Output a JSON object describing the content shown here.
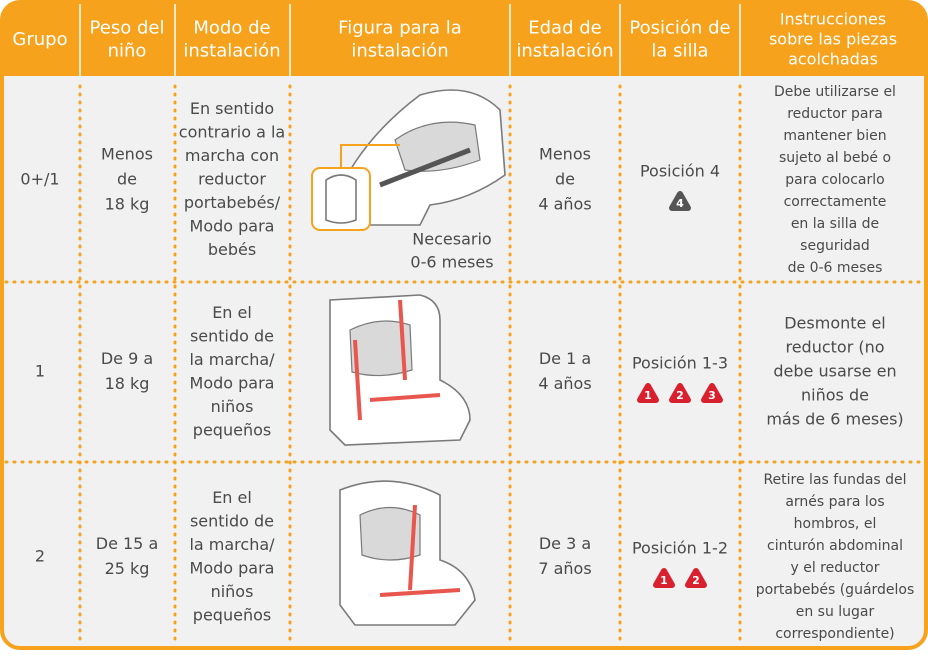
{
  "table": {
    "header": [
      [
        "Grupo"
      ],
      [
        "Peso del",
        "niño"
      ],
      [
        "Modo de",
        "instalación"
      ],
      [
        "Figura para la",
        "instalación"
      ],
      [
        "Edad de",
        "instalación"
      ],
      [
        "Posición de",
        "la silla"
      ],
      [
        "Instrucciones",
        "sobre las piezas",
        "acolchadas"
      ]
    ],
    "rows": [
      {
        "group": [
          "0+/1"
        ],
        "weight": [
          "Menos",
          "de",
          "18 kg"
        ],
        "mode": [
          "En sentido",
          "contrario a la",
          "marcha con",
          "reductor",
          "portabebés/",
          "Modo para",
          "bebés"
        ],
        "figure_caption": [
          "Necesario",
          "0-6 meses"
        ],
        "age": [
          "Menos",
          "de",
          "4 años"
        ],
        "position": [
          "Posición 4"
        ],
        "badges": [
          "4"
        ],
        "instructions": [
          "Debe utilizarse el",
          "reductor para",
          "mantener bien",
          "sujeto al bebé o",
          "para colocarlo",
          "correctamente",
          "en la silla de",
          "seguridad",
          "de 0-6 meses"
        ]
      },
      {
        "group": [
          "1"
        ],
        "weight": [
          "De 9 a",
          "18 kg"
        ],
        "mode": [
          "En el",
          "sentido de",
          "la marcha/",
          "Modo para",
          "niños",
          "pequeños"
        ],
        "figure_caption": [],
        "age": [
          "De 1 a",
          "4 años"
        ],
        "position": [
          "Posición 1-3"
        ],
        "badges": [
          "1",
          "2",
          "3"
        ],
        "instructions": [
          "Desmonte el",
          "reductor (no",
          "debe usarse en",
          "niños de",
          "más de 6 meses)"
        ]
      },
      {
        "group": [
          "2"
        ],
        "weight": [
          "De 15 a",
          "25 kg"
        ],
        "mode": [
          "En el",
          "sentido de",
          "la marcha/",
          "Modo para",
          "niños",
          "pequeños"
        ],
        "figure_caption": [],
        "age": [
          "De 3 a",
          "7 años"
        ],
        "position": [
          "Posición 1-2"
        ],
        "badges": [
          "1",
          "2"
        ],
        "instructions": [
          "Retire las fundas del",
          "arnés para los",
          "hombros, el",
          "cinturón abdominal",
          "y el reductor",
          "portabebés (guárdelos",
          "en su lugar",
          "correspondiente)"
        ]
      }
    ]
  }
}
